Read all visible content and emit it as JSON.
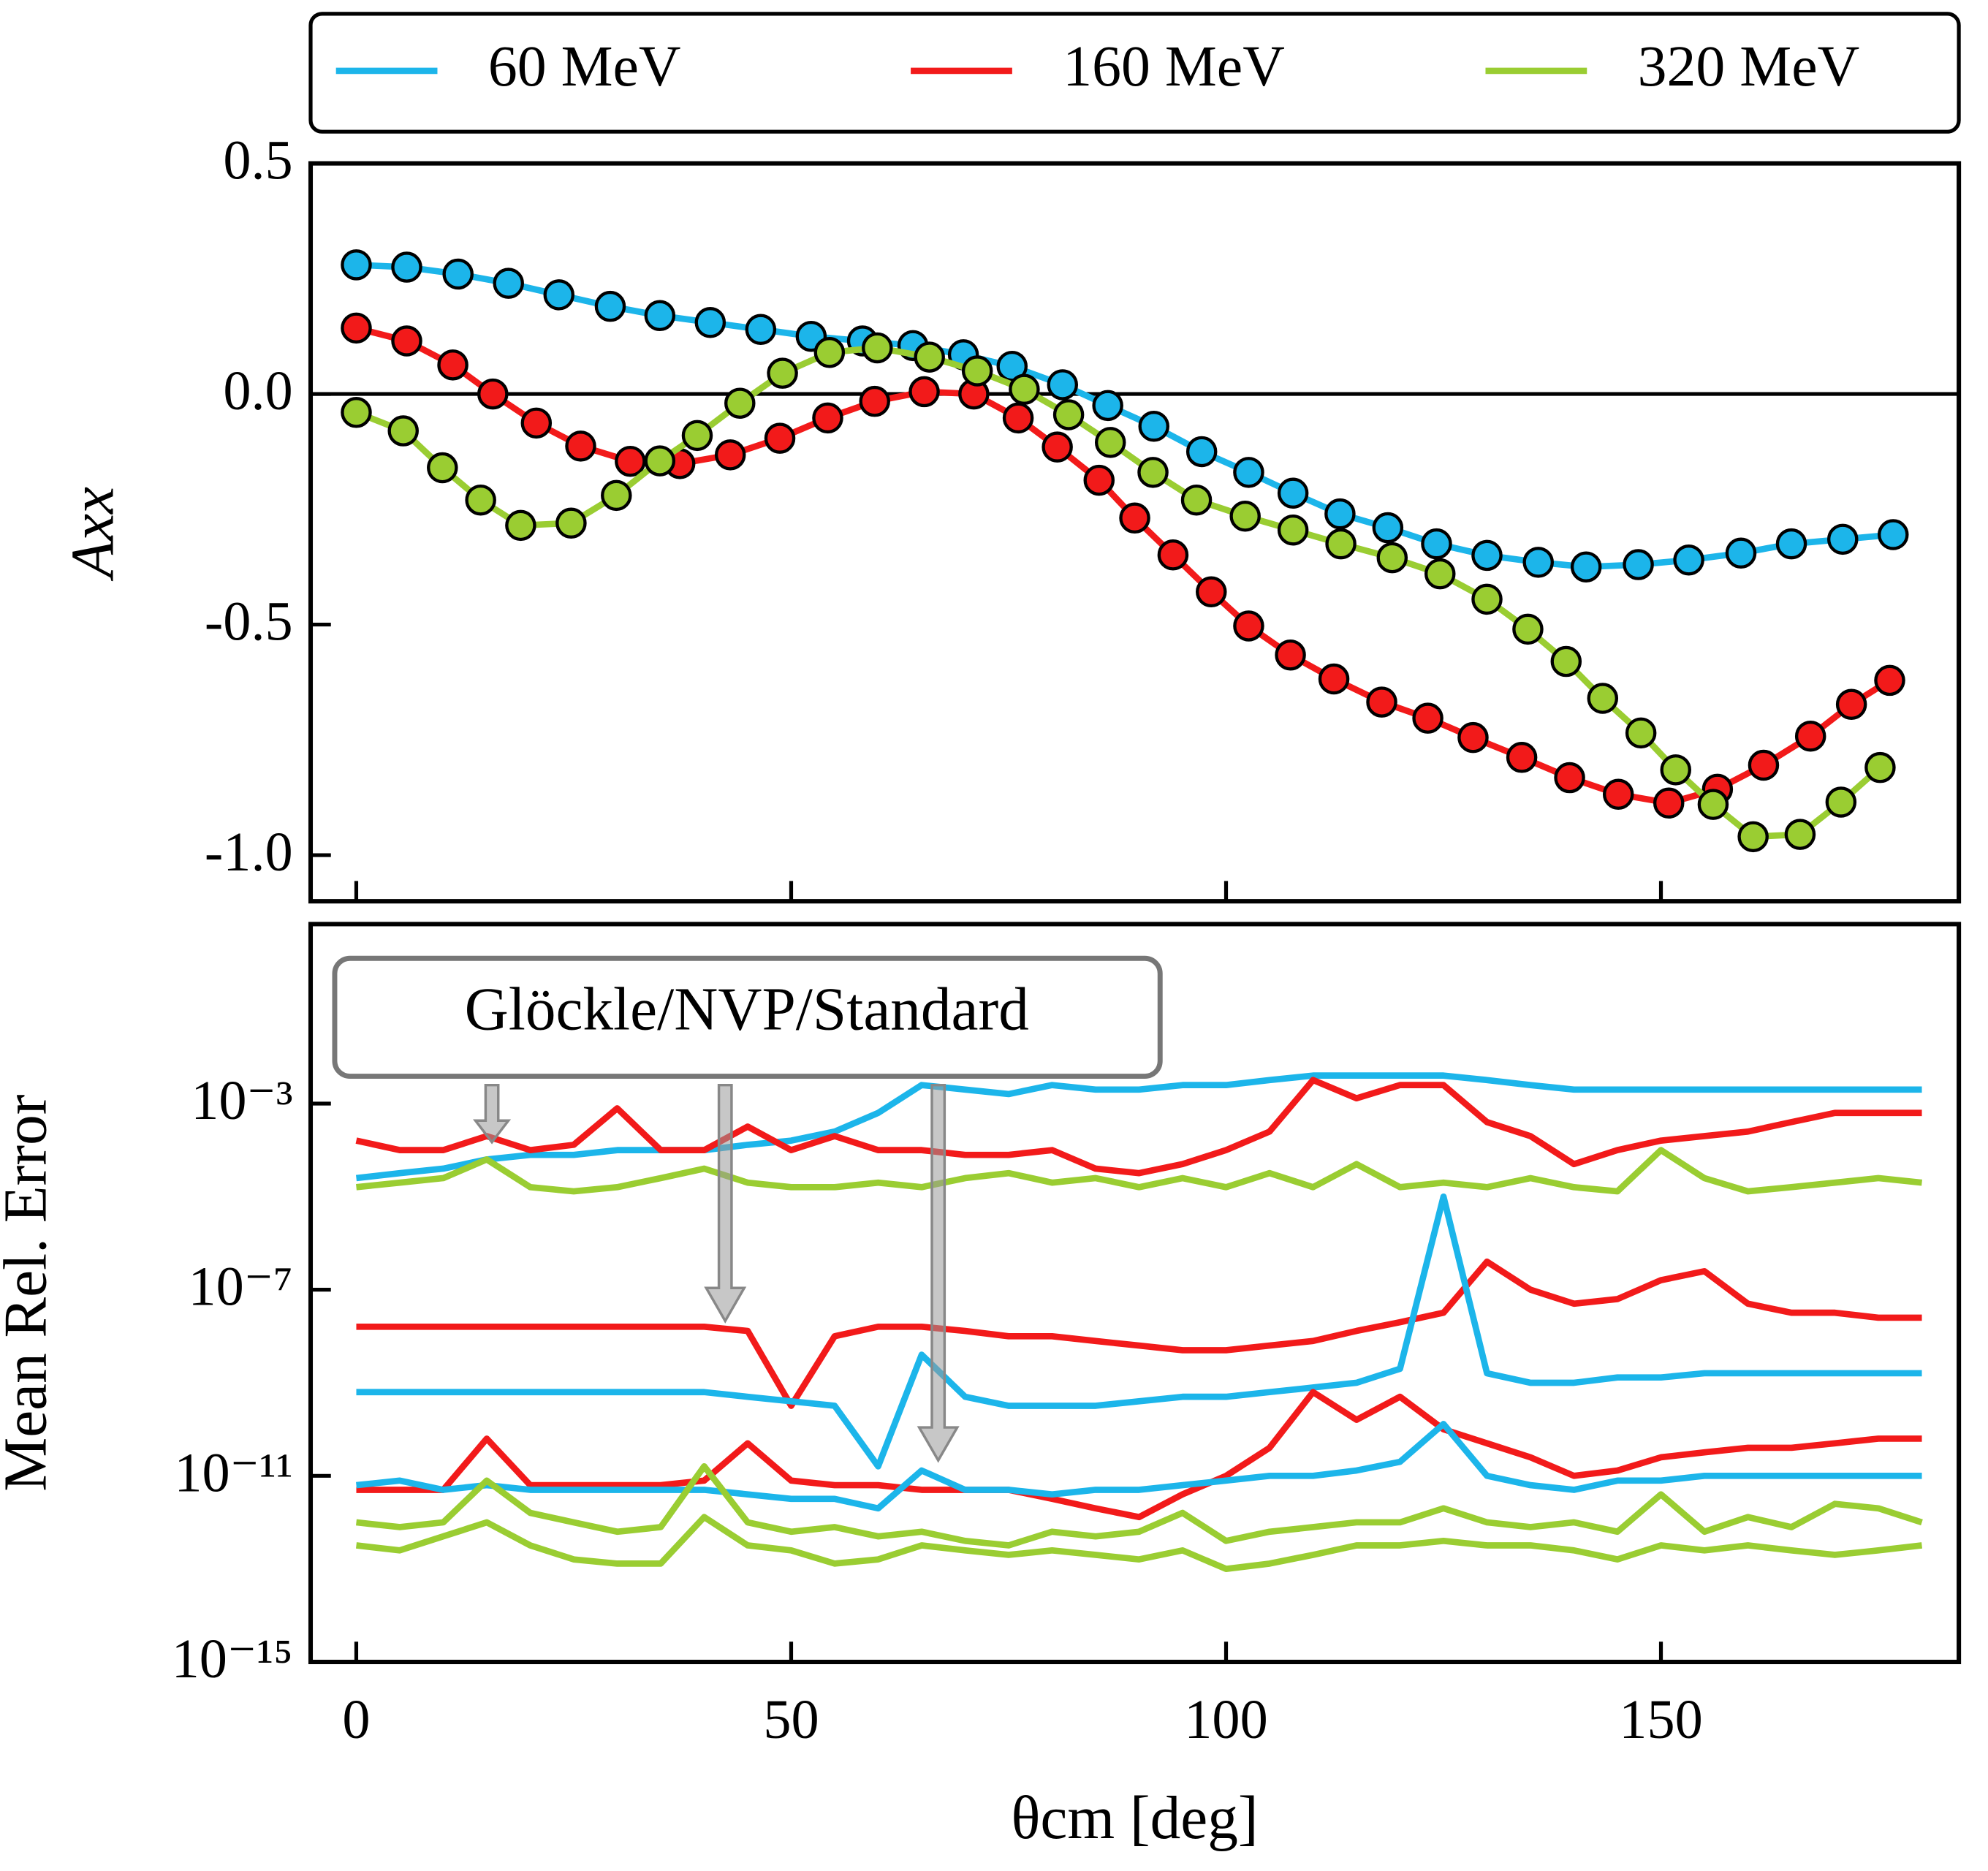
{
  "chart_data": [
    {
      "type": "line",
      "markers": true,
      "ylabel": "Axx",
      "xlim": [
        -5.25,
        184.25
      ],
      "xticks": [
        0,
        50,
        100,
        150
      ],
      "ylim": [
        -1.1,
        0.5
      ],
      "yticks": [
        0.5,
        {
          "value": 0,
          "label": "0.0"
        },
        -0.5,
        {
          "value": -1,
          "label": "-1.0"
        }
      ],
      "legend": "top",
      "series": [
        {
          "name": "60 MeV",
          "color": "#1cb5ea",
          "x": [
            0,
            5.8,
            11.7,
            17.5,
            23.3,
            29.2,
            34.9,
            40.7,
            46.5,
            52.3,
            58.2,
            64.0,
            69.8,
            75.4,
            81.2,
            86.4,
            91.7,
            97.2,
            102.6,
            107.7,
            113.1,
            118.6,
            124.2,
            130.0,
            135.9,
            141.4,
            147.4,
            153.2,
            159.2,
            165.0,
            170.9,
            176.7
          ],
          "values": [
            0.28,
            0.275,
            0.26,
            0.24,
            0.215,
            0.19,
            0.17,
            0.155,
            0.14,
            0.125,
            0.115,
            0.105,
            0.085,
            0.06,
            0.02,
            -0.025,
            -0.07,
            -0.125,
            -0.17,
            -0.215,
            -0.26,
            -0.29,
            -0.325,
            -0.35,
            -0.365,
            -0.375,
            -0.37,
            -0.36,
            -0.345,
            -0.325,
            -0.315,
            -0.305
          ]
        },
        {
          "name": "160 MeV",
          "color": "#f21a1a",
          "x": [
            0,
            5.8,
            11.1,
            15.7,
            20.7,
            25.8,
            31.5,
            37.2,
            43.0,
            48.7,
            54.2,
            59.6,
            65.3,
            71.0,
            76.1,
            80.6,
            85.4,
            89.5,
            93.9,
            98.3,
            102.6,
            107.4,
            112.4,
            117.9,
            123.2,
            128.4,
            134.0,
            139.5,
            145.1,
            150.9,
            156.5,
            161.8,
            167.2,
            171.9,
            176.3
          ],
          "values": [
            0.143,
            0.115,
            0.063,
            0,
            -0.063,
            -0.113,
            -0.146,
            -0.151,
            -0.132,
            -0.096,
            -0.052,
            -0.016,
            0.005,
            0,
            -0.052,
            -0.115,
            -0.187,
            -0.269,
            -0.349,
            -0.429,
            -0.503,
            -0.566,
            -0.618,
            -0.668,
            -0.703,
            -0.745,
            -0.788,
            -0.832,
            -0.868,
            -0.887,
            -0.857,
            -0.805,
            -0.742,
            -0.673,
            -0.621
          ]
        },
        {
          "name": "320 MeV",
          "color": "#9acd32",
          "x": [
            0,
            5.4,
            9.9,
            14.3,
            18.9,
            24.7,
            29.9,
            34.9,
            39.2,
            44.1,
            49.0,
            54.4,
            59.9,
            65.9,
            71.4,
            76.8,
            81.9,
            86.7,
            91.6,
            96.6,
            102.2,
            107.7,
            113.2,
            119.1,
            124.6,
            130.0,
            134.7,
            139.1,
            143.3,
            147.7,
            151.7,
            156.0,
            160.6,
            166.0,
            170.7,
            175.2
          ],
          "values": [
            -0.04,
            -0.08,
            -0.16,
            -0.23,
            -0.285,
            -0.28,
            -0.22,
            -0.145,
            -0.09,
            -0.02,
            0.045,
            0.09,
            0.1,
            0.08,
            0.05,
            0.01,
            -0.045,
            -0.105,
            -0.17,
            -0.23,
            -0.265,
            -0.295,
            -0.325,
            -0.355,
            -0.39,
            -0.445,
            -0.51,
            -0.58,
            -0.66,
            -0.735,
            -0.815,
            -0.89,
            -0.96,
            -0.955,
            -0.885,
            -0.81
          ]
        }
      ]
    },
    {
      "type": "line",
      "yscale": "log",
      "xlabel": "θcm [deg]",
      "ylabel": "Mean Rel. Error",
      "annotation": "Glöckle/NVP/Standard",
      "xlim": [
        -5.25,
        184.25
      ],
      "xticks": [
        0,
        50,
        100,
        150
      ],
      "ylim": [
        1e-15,
        7.2
      ],
      "yticks": [
        {
          "value": 0.001,
          "label": "10⁻³"
        },
        {
          "value": 1e-07,
          "label": "10⁻⁷"
        },
        {
          "value": 1e-11,
          "label": "10⁻¹¹"
        },
        {
          "value": 1e-15,
          "label": "10⁻¹⁵"
        }
      ],
      "x": [
        0,
        5,
        10,
        15,
        20,
        25,
        30,
        35,
        40,
        45,
        50,
        55,
        60,
        65,
        70,
        75,
        80,
        85,
        90,
        95,
        100,
        105,
        110,
        115,
        120,
        125,
        130,
        135,
        140,
        145,
        150,
        155,
        160,
        165,
        170,
        175,
        180
      ],
      "series": [
        {
          "color": "#1cb5ea",
          "values": [
            2.5e-05,
            3.2e-05,
            4e-05,
            6.3e-05,
            7.9e-05,
            7.9e-05,
            0.0001,
            0.0001,
            0.0001,
            0.00013,
            0.00016,
            0.00025,
            0.00063,
            0.0025,
            0.002,
            0.0016,
            0.0025,
            0.002,
            0.002,
            0.0025,
            0.0025,
            0.0032,
            0.004,
            0.004,
            0.004,
            0.004,
            0.0032,
            0.0025,
            0.002,
            0.002,
            0.002,
            0.002,
            0.002,
            0.002,
            0.002,
            0.002,
            0.002
          ]
        },
        {
          "color": "#f21a1a",
          "values": [
            0.00016,
            0.0001,
            0.0001,
            0.0002,
            0.0001,
            0.00013,
            0.00079,
            0.0001,
            0.0001,
            0.00032,
            0.0001,
            0.0002,
            0.0001,
            0.0001,
            7.9e-05,
            7.9e-05,
            0.0001,
            4e-05,
            3.2e-05,
            5e-05,
            0.0001,
            0.00025,
            0.0032,
            0.0013,
            0.0025,
            0.0025,
            0.0004,
            0.0002,
            5e-05,
            0.0001,
            0.00016,
            0.0002,
            0.00025,
            0.0004,
            0.00063,
            0.00063,
            0.00063
          ]
        },
        {
          "color": "#9acd32",
          "values": [
            1.6e-05,
            2e-05,
            2.5e-05,
            6.3e-05,
            1.6e-05,
            1.3e-05,
            1.6e-05,
            2.5e-05,
            4e-05,
            2e-05,
            1.6e-05,
            1.6e-05,
            2e-05,
            1.6e-05,
            2.5e-05,
            3.2e-05,
            2e-05,
            2.5e-05,
            1.6e-05,
            2.5e-05,
            1.6e-05,
            3.2e-05,
            1.6e-05,
            5e-05,
            1.6e-05,
            2e-05,
            1.6e-05,
            2.5e-05,
            1.6e-05,
            1.3e-05,
            0.0001,
            2.5e-05,
            1.3e-05,
            1.6e-05,
            2e-05,
            2.5e-05,
            2e-05
          ]
        },
        {
          "color": "#f21a1a",
          "values": [
            1.6e-08,
            1.6e-08,
            1.6e-08,
            1.6e-08,
            1.6e-08,
            1.6e-08,
            1.6e-08,
            1.6e-08,
            1.6e-08,
            1.3e-08,
            3.2e-10,
            1e-08,
            1.6e-08,
            1.6e-08,
            1.3e-08,
            1e-08,
            1e-08,
            7.9e-09,
            6.3e-09,
            5e-09,
            5e-09,
            6.3e-09,
            7.9e-09,
            1.3e-08,
            2e-08,
            3.2e-08,
            4e-07,
            1e-07,
            5e-08,
            6.3e-08,
            1.6e-07,
            2.5e-07,
            5e-08,
            3.2e-08,
            3.2e-08,
            2.5e-08,
            2.5e-08
          ]
        },
        {
          "color": "#1cb5ea",
          "values": [
            6.3e-10,
            6.3e-10,
            6.3e-10,
            6.3e-10,
            6.3e-10,
            6.3e-10,
            6.3e-10,
            6.3e-10,
            6.3e-10,
            5e-10,
            4e-10,
            3.2e-10,
            1.6e-11,
            4e-09,
            5e-10,
            3.2e-10,
            3.2e-10,
            3.2e-10,
            4e-10,
            5e-10,
            5e-10,
            6.3e-10,
            7.9e-10,
            1e-09,
            2e-09,
            1e-05,
            1.6e-09,
            1e-09,
            1e-09,
            1.3e-09,
            1.3e-09,
            1.6e-09,
            1.6e-09,
            1.6e-09,
            1.6e-09,
            1.6e-09,
            1.6e-09
          ]
        },
        {
          "color": "#9acd32",
          "values": [
            3.2e-13,
            2.5e-13,
            5e-13,
            1e-12,
            3.2e-13,
            1.6e-13,
            1.3e-13,
            1.3e-13,
            1.3e-12,
            3.2e-13,
            2.5e-13,
            1.3e-13,
            1.6e-13,
            3.2e-13,
            2.5e-13,
            2e-13,
            2.5e-13,
            2e-13,
            1.6e-13,
            2.5e-13,
            1e-13,
            1.3e-13,
            2e-13,
            3.2e-13,
            3.2e-13,
            4e-13,
            3.2e-13,
            3.2e-13,
            2.5e-13,
            1.6e-13,
            3.2e-13,
            2.5e-13,
            3.2e-13,
            2.5e-13,
            2e-13,
            2.5e-13,
            3.2e-13
          ]
        },
        {
          "color": "#f21a1a",
          "values": [
            5e-12,
            5e-12,
            5e-12,
            6.3e-11,
            6.3e-12,
            6.3e-12,
            6.3e-12,
            6.3e-12,
            7.9e-12,
            5e-11,
            7.9e-12,
            6.3e-12,
            6.3e-12,
            5e-12,
            5e-12,
            5e-12,
            3.2e-12,
            2e-12,
            1.3e-12,
            4e-12,
            1e-11,
            4e-11,
            6.3e-10,
            1.6e-10,
            5e-10,
            1e-10,
            5e-11,
            2.5e-11,
            1e-11,
            1.3e-11,
            2.5e-11,
            3.2e-11,
            4e-11,
            4e-11,
            5e-11,
            6.3e-11,
            6.3e-11
          ]
        },
        {
          "color": "#1cb5ea",
          "values": [
            6.3e-12,
            7.9e-12,
            5e-12,
            6.3e-12,
            5e-12,
            5e-12,
            5e-12,
            5e-12,
            5e-12,
            4e-12,
            3.2e-12,
            3.2e-12,
            2e-12,
            1.3e-11,
            5e-12,
            5e-12,
            4e-12,
            5e-12,
            5e-12,
            6.3e-12,
            7.9e-12,
            1e-11,
            1e-11,
            1.3e-11,
            2e-11,
            1.3e-10,
            1e-11,
            6.3e-12,
            5e-12,
            7.9e-12,
            7.9e-12,
            1e-11,
            1e-11,
            1e-11,
            1e-11,
            1e-11,
            1e-11
          ]
        },
        {
          "color": "#9acd32",
          "values": [
            1e-12,
            7.9e-13,
            1e-12,
            7.9e-12,
            1.6e-12,
            1e-12,
            6.3e-13,
            7.9e-13,
            1.6e-11,
            1e-12,
            6.3e-13,
            7.9e-13,
            5e-13,
            6.3e-13,
            4e-13,
            3.2e-13,
            6.3e-13,
            5e-13,
            6.3e-13,
            1.6e-12,
            4e-13,
            6.3e-13,
            7.9e-13,
            1e-12,
            1e-12,
            2e-12,
            1e-12,
            7.9e-13,
            1e-12,
            6.3e-13,
            4e-12,
            6.3e-13,
            1.3e-12,
            7.9e-13,
            2.5e-12,
            2e-12,
            1e-12
          ]
        }
      ]
    }
  ]
}
